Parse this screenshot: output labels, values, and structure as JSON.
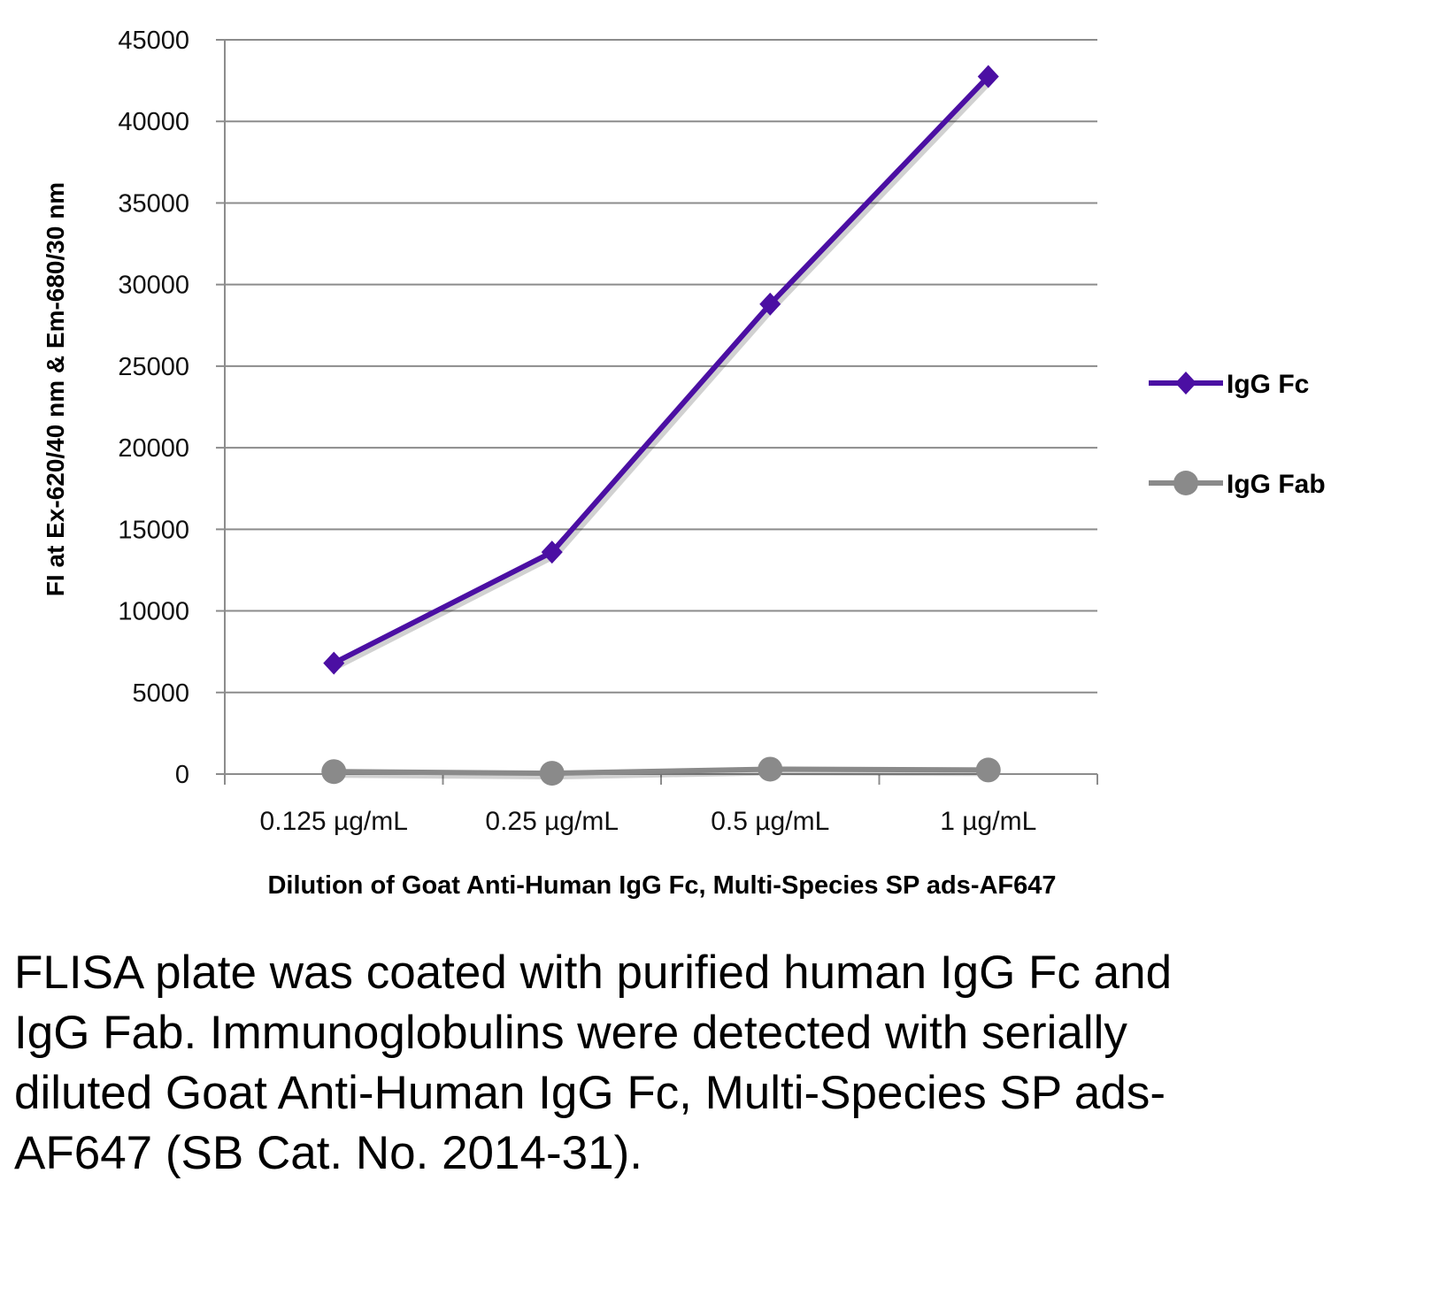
{
  "chart_data": {
    "type": "line",
    "categories": [
      "0.125 µg/mL",
      "0.25 µg/mL",
      "0.5 µg/mL",
      "1 µg/mL"
    ],
    "series": [
      {
        "name": "IgG Fc",
        "values": [
          6800,
          13600,
          28800,
          42750
        ],
        "color": "#4b0fa3",
        "marker": "diamond"
      },
      {
        "name": "IgG Fab",
        "values": [
          150,
          50,
          300,
          250
        ],
        "color": "#8a8a8a",
        "marker": "circle"
      }
    ],
    "xlabel": "Dilution of Goat Anti-Human IgG Fc, Multi-Species SP ads-AF647",
    "ylabel": "FI at Ex-620/40 nm & Em-680/30 nm",
    "ylim": [
      0,
      45000
    ],
    "yticks": [
      "0",
      "5000",
      "10000",
      "15000",
      "20000",
      "25000",
      "30000",
      "35000",
      "40000",
      "45000"
    ],
    "grid": true,
    "legend": "right"
  },
  "caption": "FLISA plate was coated with purified human IgG Fc and IgG Fab.  Immunoglobulins were detected with serially diluted Goat Anti-Human IgG Fc, Multi-Species SP ads-AF647 (SB Cat. No. 2014-31)."
}
